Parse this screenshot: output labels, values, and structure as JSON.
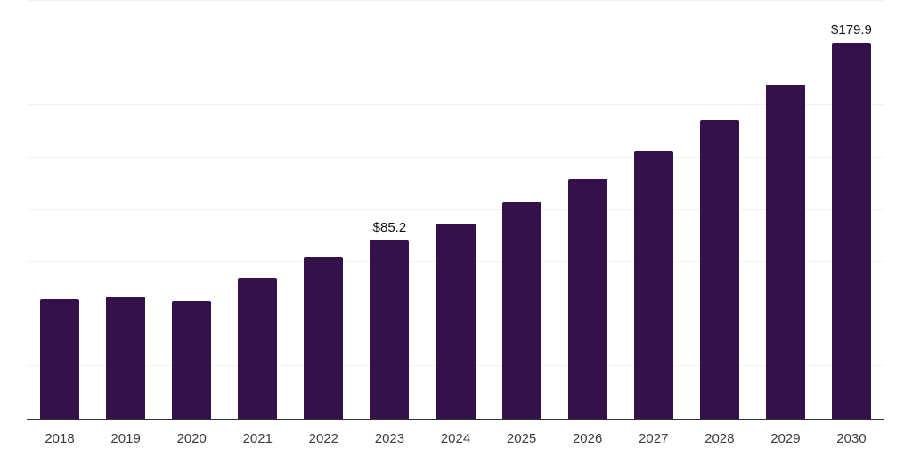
{
  "chart_data": {
    "type": "bar",
    "title": "",
    "categories": [
      "2018",
      "2019",
      "2020",
      "2021",
      "2022",
      "2023",
      "2024",
      "2025",
      "2026",
      "2027",
      "2028",
      "2029",
      "2030"
    ],
    "values": [
      57.1,
      58.4,
      56.4,
      67.5,
      77.3,
      85.2,
      93.3,
      103.8,
      114.8,
      128.0,
      142.8,
      159.8,
      179.9
    ],
    "data_labels": {
      "2023": "$85.2",
      "2030": "$179.9"
    },
    "xlabel": "",
    "ylabel": "",
    "ylim": [
      0,
      200
    ],
    "gridline_step": 25,
    "grid": true,
    "legend": false,
    "colors": {
      "bar": "#35114B",
      "axis_line": "#333333",
      "gridline": "#f2f2f2",
      "tick_text": "#3d3d3d",
      "data_label_text": "#111111"
    }
  }
}
